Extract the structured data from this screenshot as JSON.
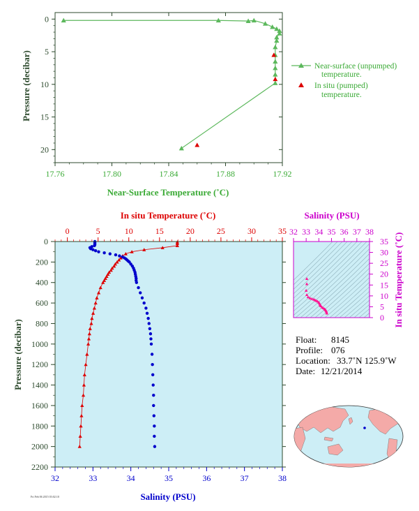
{
  "chart_data": [
    {
      "type": "scatter",
      "xlabel": "Near-Surface Temperature (˚C)",
      "ylabel": "Pressure (decibar)",
      "xlim": [
        17.76,
        17.92
      ],
      "ylim": [
        22,
        -1
      ],
      "xticks": [
        "17.76",
        "17.80",
        "17.84",
        "17.88",
        "17.92"
      ],
      "yticks": [
        "0",
        "5",
        "10",
        "15",
        "20"
      ],
      "grid": false,
      "legend_position": "right",
      "colors": {
        "near_surface": "#5cb85c",
        "in_situ": "#dd0000",
        "axes": "#2d4a2d",
        "label": "#3aaa35"
      },
      "series": [
        {
          "name": "Near-surface (unpumped) temperature.",
          "style": "line-triangle",
          "x": [
            17.766,
            17.875,
            17.896,
            17.9,
            17.908,
            17.913,
            17.916,
            17.918,
            17.918,
            17.916,
            17.916,
            17.915,
            17.915,
            17.915,
            17.915,
            17.915,
            17.915,
            17.849
          ],
          "y": [
            0.2,
            0.2,
            0.3,
            0.2,
            0.7,
            1.2,
            1.5,
            1.8,
            2.2,
            2.8,
            3.3,
            4.3,
            5.5,
            6.5,
            7.5,
            8.5,
            9.8,
            19.8
          ]
        },
        {
          "name": "In situ (pumped) temperature.",
          "style": "triangle",
          "x": [
            17.914,
            17.915,
            17.86
          ],
          "y": [
            5.5,
            9.2,
            19.3
          ]
        }
      ]
    },
    {
      "type": "line",
      "title": "",
      "top_axis_label": "In situ Temperature (˚C)",
      "bottom_axis_label": "Salinity (PSU)",
      "ylabel": "Pressure (decibar)",
      "temperature_xlim": [
        -2,
        35
      ],
      "salinity_xlim": [
        32,
        38
      ],
      "ylim": [
        2200,
        0
      ],
      "temperature_ticks": [
        "0",
        "5",
        "10",
        "15",
        "20",
        "25",
        "30",
        "35"
      ],
      "salinity_ticks": [
        "32",
        "33",
        "34",
        "35",
        "36",
        "37",
        "38"
      ],
      "pressure_ticks": [
        "0",
        "200",
        "400",
        "600",
        "800",
        "1000",
        "1200",
        "1400",
        "1600",
        "1800",
        "2000",
        "2200"
      ],
      "colors": {
        "temperature": "#dd0000",
        "salinity": "#0000cc",
        "background": "#cdeef6",
        "axes": "#2d4a2d"
      },
      "series": [
        {
          "name": "Temperature",
          "pressure": [
            5,
            20,
            40,
            60,
            80,
            100,
            120,
            140,
            160,
            180,
            200,
            220,
            240,
            260,
            280,
            300,
            320,
            340,
            360,
            380,
            400,
            450,
            500,
            550,
            600,
            650,
            700,
            750,
            800,
            850,
            900,
            950,
            1000,
            1100,
            1200,
            1300,
            1400,
            1500,
            1600,
            1700,
            1800,
            1900,
            2000
          ],
          "values": [
            17.9,
            17.9,
            17.9,
            15.5,
            12.5,
            10.5,
            9.5,
            9.0,
            8.7,
            8.4,
            8.1,
            7.8,
            7.6,
            7.3,
            7.1,
            6.8,
            6.6,
            6.4,
            6.2,
            6.0,
            5.8,
            5.4,
            5.1,
            4.8,
            4.6,
            4.4,
            4.2,
            4.0,
            3.9,
            3.7,
            3.6,
            3.5,
            3.4,
            3.2,
            3.0,
            2.8,
            2.7,
            2.6,
            2.4,
            2.3,
            2.2,
            2.1,
            2.0
          ]
        },
        {
          "name": "Salinity",
          "pressure": [
            0,
            10,
            20,
            30,
            40,
            50,
            60,
            70,
            80,
            90,
            100,
            110,
            120,
            130,
            140,
            150,
            160,
            170,
            180,
            190,
            200,
            220,
            240,
            260,
            280,
            300,
            320,
            340,
            360,
            380,
            400,
            450,
            500,
            550,
            600,
            650,
            700,
            750,
            800,
            850,
            900,
            950,
            1000,
            1100,
            1200,
            1300,
            1400,
            1500,
            1600,
            1700,
            1800,
            1900,
            2000
          ],
          "values": [
            33.05,
            33.05,
            33.05,
            33.05,
            33.04,
            32.97,
            32.92,
            32.94,
            33.0,
            33.07,
            33.15,
            33.3,
            33.45,
            33.6,
            33.7,
            33.78,
            33.83,
            33.87,
            33.9,
            33.93,
            33.96,
            34.0,
            34.04,
            34.07,
            34.09,
            34.11,
            34.12,
            34.13,
            34.14,
            34.14,
            34.15,
            34.2,
            34.25,
            34.3,
            34.35,
            34.4,
            34.43,
            34.46,
            34.48,
            34.5,
            34.52,
            34.53,
            34.54,
            34.56,
            34.57,
            34.58,
            34.59,
            34.6,
            34.6,
            34.61,
            34.62,
            34.62,
            34.63
          ]
        }
      ]
    },
    {
      "type": "scatter",
      "title": "Salinity (PSU)",
      "ylabel": "In situ Temperature (˚C)",
      "xlim": [
        32,
        38
      ],
      "ylim": [
        0,
        35
      ],
      "xticks": [
        "32",
        "33",
        "34",
        "35",
        "36",
        "37",
        "38"
      ],
      "yticks": [
        "0",
        "5",
        "10",
        "15",
        "20",
        "25",
        "30",
        "35"
      ],
      "colors": {
        "points": "#ff1493",
        "axes": "#cc00cc",
        "background": "#cdeef6",
        "isolines": "#8fb0bb"
      },
      "series": [
        {
          "name": "",
          "x": [
            33.05,
            33.05,
            33.0,
            33.05,
            33.15,
            33.3,
            33.45,
            33.6,
            33.7,
            33.8,
            33.9,
            34.0,
            34.05,
            34.1,
            34.12,
            34.15,
            34.25,
            34.35,
            34.45,
            34.5,
            34.55,
            34.58,
            34.61,
            34.63
          ],
          "y": [
            17.9,
            15.5,
            12.5,
            10.5,
            9.5,
            9.0,
            8.7,
            8.4,
            8.1,
            7.8,
            7.5,
            7.0,
            6.5,
            6.0,
            5.8,
            5.4,
            4.8,
            4.4,
            4.0,
            3.7,
            3.4,
            3.0,
            2.6,
            2.0
          ]
        }
      ]
    }
  ],
  "info": {
    "float_label": "Float:",
    "float_value": "8145",
    "profile_label": "Profile:",
    "profile_value": "076",
    "location_label": "Location:",
    "location_value": "33.7˚N  125.9˚W",
    "date_label": "Date:",
    "date_value": "12/21/2014"
  },
  "map": {
    "land_color": "#f4aaa8",
    "ocean_color": "#cdeef6",
    "marker_color": "#0000cc",
    "marker_lat": 33.7,
    "marker_lon": -125.9
  },
  "footer_text": "Fri Feb 06 2015  03:02:10"
}
